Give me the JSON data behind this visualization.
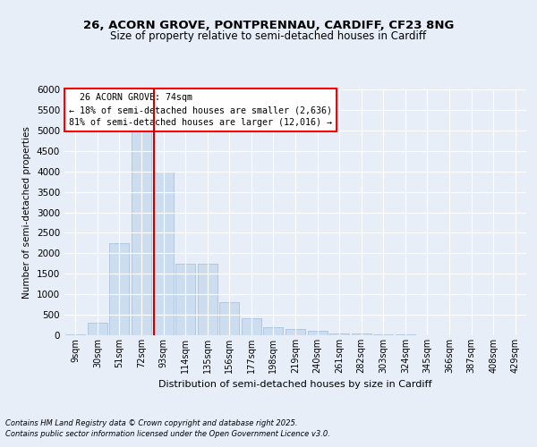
{
  "title1": "26, ACORN GROVE, PONTPRENNAU, CARDIFF, CF23 8NG",
  "title2": "Size of property relative to semi-detached houses in Cardiff",
  "xlabel": "Distribution of semi-detached houses by size in Cardiff",
  "ylabel": "Number of semi-detached properties",
  "categories": [
    "9sqm",
    "30sqm",
    "51sqm",
    "72sqm",
    "93sqm",
    "114sqm",
    "135sqm",
    "156sqm",
    "177sqm",
    "198sqm",
    "219sqm",
    "240sqm",
    "261sqm",
    "282sqm",
    "303sqm",
    "324sqm",
    "345sqm",
    "366sqm",
    "387sqm",
    "408sqm",
    "429sqm"
  ],
  "values": [
    25,
    310,
    2250,
    5000,
    4000,
    1750,
    1750,
    800,
    420,
    200,
    150,
    100,
    50,
    40,
    30,
    20,
    10,
    5,
    3,
    2,
    1
  ],
  "bar_color": "#cdddf0",
  "bar_edge_color": "#a0bcd8",
  "vline_color": "#cc0000",
  "vline_pos": 3.57,
  "property_sqm": 74,
  "pct_smaller": 18,
  "count_smaller": "2,636",
  "pct_larger": 81,
  "count_larger": "12,016",
  "ylim": [
    0,
    6000
  ],
  "yticks": [
    0,
    500,
    1000,
    1500,
    2000,
    2500,
    3000,
    3500,
    4000,
    4500,
    5000,
    5500,
    6000
  ],
  "bg_color": "#e8eef8",
  "grid_color": "#ffffff",
  "footnote1": "Contains HM Land Registry data © Crown copyright and database right 2025.",
  "footnote2": "Contains public sector information licensed under the Open Government Licence v3.0."
}
